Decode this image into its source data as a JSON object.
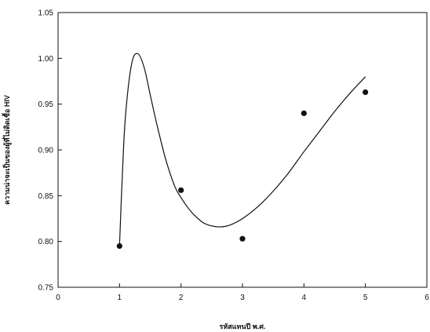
{
  "chart_data": {
    "type": "scatter",
    "xlabel": "รหัสแทนปี พ.ศ.",
    "ylabel": "ความน่าจะเป็นของผู้ที่ไม่ติดเชื้อ HIV",
    "xlim": [
      0,
      6
    ],
    "ylim": [
      0.75,
      1.05
    ],
    "x_ticks": [
      "0",
      "1",
      "2",
      "3",
      "4",
      "5",
      "6"
    ],
    "y_ticks": [
      "0.75",
      "0.80",
      "0.85",
      "0.90",
      "0.95",
      "1.00",
      "1.05"
    ],
    "grid": false,
    "series": [
      {
        "kind": "points",
        "x": [
          1,
          2,
          3,
          4,
          5
        ],
        "y": [
          0.795,
          0.856,
          0.803,
          0.94,
          0.963
        ]
      },
      {
        "kind": "fitted-curve",
        "x": [
          1.0,
          1.05,
          1.1,
          1.2,
          1.3,
          1.4,
          1.5,
          1.6,
          1.75,
          1.9,
          2.0,
          2.1,
          2.2,
          2.35,
          2.5,
          2.65,
          2.8,
          3.0,
          3.25,
          3.5,
          3.75,
          4.0,
          4.25,
          4.5,
          4.75,
          5.0
        ],
        "y": [
          0.795,
          0.88,
          0.94,
          0.995,
          1.005,
          0.99,
          0.96,
          0.93,
          0.89,
          0.86,
          0.848,
          0.838,
          0.83,
          0.821,
          0.817,
          0.816,
          0.818,
          0.825,
          0.838,
          0.855,
          0.875,
          0.898,
          0.92,
          0.942,
          0.962,
          0.98
        ]
      }
    ]
  }
}
